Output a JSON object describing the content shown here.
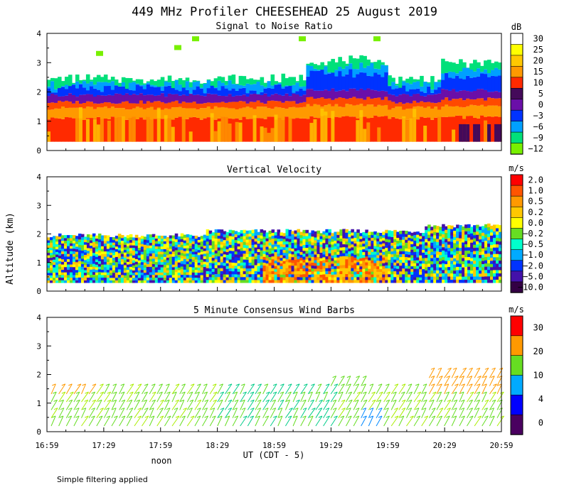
{
  "title": "449 MHz Profiler CHEESEHEAD 25 August 2019",
  "ylabel": "Altitude (km)",
  "xlabel": "UT  (CDT - 5)",
  "noon_label": "noon",
  "footnote": "Simple filtering applied",
  "chart_data": [
    {
      "type": "heatmap",
      "title": "Signal to Noise Ratio",
      "unit": "dB",
      "ylim": [
        0,
        4
      ],
      "yticks": [
        "0",
        "1",
        "2",
        "3",
        "4"
      ],
      "colorbar": {
        "labels": [
          "30",
          "25",
          "20",
          "15",
          "10",
          "5",
          "0",
          "−3",
          "−6",
          "−9",
          "−12"
        ],
        "colors": [
          "#ffffff",
          "#ffff00",
          "#ffc800",
          "#ff9900",
          "#ff2a00",
          "#440a5a",
          "#6a0fa8",
          "#0033ff",
          "#00a0ff",
          "#00e07a",
          "#78f000"
        ]
      },
      "layers_km": [
        {
          "top": 0.3,
          "color": "#ff2a00"
        },
        {
          "top": 1.1,
          "color": "#ff9900"
        },
        {
          "top": 1.45,
          "color": "#ff4a00"
        },
        {
          "top": 1.65,
          "color": "#6a0fa8"
        },
        {
          "top": 1.9,
          "color": "#0033ff"
        },
        {
          "top": 2.1,
          "color": "#00a0ff"
        },
        {
          "top": 2.25,
          "color": "#00e07a"
        },
        {
          "top": 2.45,
          "color": "#78f000"
        }
      ]
    },
    {
      "type": "heatmap",
      "title": "Vertical Velocity",
      "unit": "m/s",
      "ylim": [
        0,
        4
      ],
      "yticks": [
        "0",
        "1",
        "2",
        "3",
        "4"
      ],
      "colorbar": {
        "labels": [
          "2.0",
          "1.0",
          "0.5",
          "0.2",
          "0.0",
          "−0.2",
          "−0.5",
          "−1.0",
          "−2.0",
          "−5.0",
          "−10.0"
        ],
        "colors": [
          "#ff0000",
          "#ff5500",
          "#ff9900",
          "#ffc800",
          "#ffff00",
          "#66dd22",
          "#00ffcc",
          "#00aaff",
          "#0033ff",
          "#4411aa",
          "#330044"
        ]
      }
    },
    {
      "type": "scatter",
      "title": "5 Minute Consensus Wind Barbs",
      "unit": "m/s",
      "ylim": [
        0,
        4
      ],
      "yticks": [
        "0",
        "1",
        "2",
        "3",
        "4"
      ],
      "colorbar": {
        "labels": [
          "30",
          "20",
          "10",
          "4",
          "0"
        ],
        "colors": [
          "#ff0000",
          "#ff9900",
          "#66dd22",
          "#00aaff",
          "#0000ff",
          "#4a0060"
        ]
      },
      "xticks": [
        "16:59",
        "17:29",
        "17:59",
        "18:29",
        "18:59",
        "19:29",
        "19:59",
        "20:29",
        "20:59"
      ],
      "xlim_min_after_1659": [
        0,
        240
      ],
      "noon_at_min": 61
    }
  ]
}
